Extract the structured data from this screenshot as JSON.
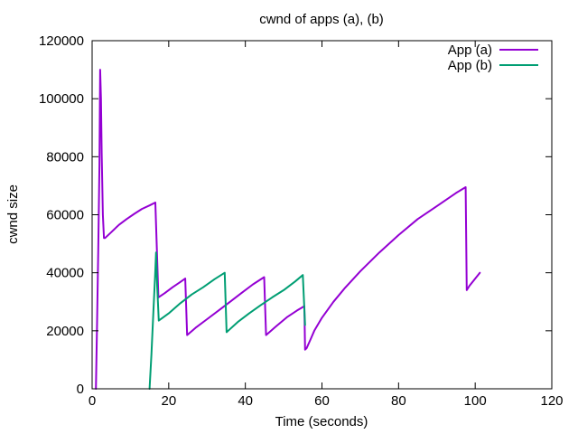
{
  "chart_data": {
    "type": "line",
    "title": "cwnd of apps (a), (b)",
    "xlabel": "Time (seconds)",
    "ylabel": "cwnd size",
    "xlim": [
      0,
      120
    ],
    "ylim": [
      0,
      120000
    ],
    "xticks": [
      0,
      20,
      40,
      60,
      80,
      100,
      120
    ],
    "yticks": [
      0,
      20000,
      40000,
      60000,
      80000,
      100000,
      120000
    ],
    "xtick_labels": [
      "0",
      "20",
      "40",
      "60",
      "80",
      "100",
      "120"
    ],
    "ytick_labels": [
      "0",
      "20000",
      "40000",
      "60000",
      "80000",
      "100000",
      "120000"
    ],
    "grid": false,
    "legend_position": "top-right",
    "series": [
      {
        "name": "App (a)",
        "color": "#9400d3",
        "x": [
          1.0,
          1.3,
          1.6,
          1.9,
          2.1,
          2.3,
          2.5,
          2.8,
          3.1,
          3.4,
          5.0,
          7.0,
          9.0,
          11.0,
          13.0,
          15.0,
          16.5,
          16.9,
          17.3,
          19.0,
          21.0,
          23.0,
          24.3,
          24.8,
          27.0,
          30.0,
          33.0,
          36.0,
          39.0,
          42.0,
          44.9,
          45.4,
          48.0,
          51.0,
          53.5,
          55.4,
          55.6,
          56.0,
          57.0,
          58.0,
          60.0,
          63.0,
          66.0,
          70.0,
          75.0,
          80.0,
          85.0,
          90.0,
          95.0,
          97.5,
          97.8,
          98.5,
          100.0,
          101.2
        ],
        "y": [
          0,
          23000,
          48000,
          77000,
          110000,
          100000,
          81000,
          60000,
          52000,
          52000,
          54000,
          56500,
          58500,
          60300,
          62000,
          63200,
          64200,
          48000,
          31500,
          33000,
          35000,
          36800,
          38000,
          18500,
          21000,
          24000,
          27000,
          30000,
          33000,
          36000,
          38500,
          18500,
          21500,
          24800,
          27000,
          28500,
          13500,
          14000,
          17000,
          20000,
          24500,
          30000,
          34800,
          40500,
          47000,
          53000,
          58500,
          63000,
          67500,
          69500,
          34000,
          35500,
          38000,
          40000
        ]
      },
      {
        "name": "App (b)",
        "color": "#009e73",
        "x": [
          15.0,
          15.5,
          16.0,
          16.4,
          16.7,
          17.0,
          17.4,
          20.0,
          23.0,
          26.0,
          29.0,
          32.0,
          34.6,
          35.1,
          38.0,
          41.0,
          44.0,
          47.0,
          50.0,
          53.0,
          55.0,
          55.6
        ],
        "y": [
          0,
          12000,
          27000,
          38000,
          47000,
          35000,
          23500,
          26000,
          29500,
          32500,
          35000,
          37800,
          40000,
          19500,
          23000,
          26000,
          28800,
          31500,
          34000,
          37000,
          39200,
          22000
        ]
      }
    ]
  }
}
